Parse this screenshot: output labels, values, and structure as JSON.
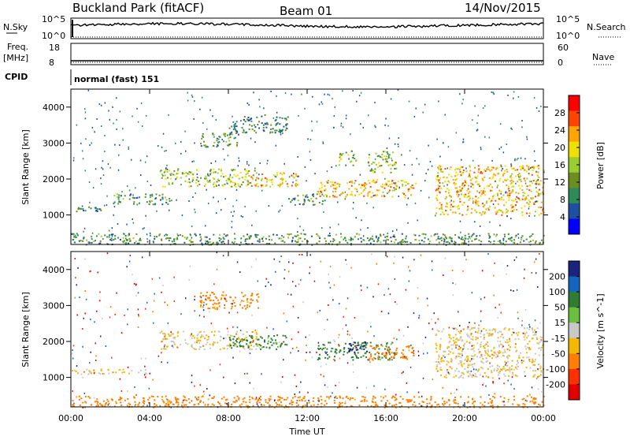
{
  "header": {
    "station": "Buckland Park (fitACF)",
    "beam": "Beam 01",
    "date": "14/Nov/2015"
  },
  "side_labels": {
    "nsky": "N.Sky",
    "nsearch": "N.Search",
    "freq_line1": "Freq.",
    "freq_line2": "[MHz]",
    "nave": "Nave",
    "cpid": "CPID"
  },
  "strip_ticks": {
    "noise_left": [
      "10^5",
      "10^0"
    ],
    "noise_right": [
      "10^5",
      "10^0"
    ],
    "freq_left": [
      "18",
      "8"
    ],
    "nave_right": [
      "60",
      "0"
    ]
  },
  "cpid_text": "normal (fast) 151",
  "axis_labels": {
    "ylabel": "Slant Range [km]",
    "xlabel": "Time UT"
  },
  "colors": {
    "power": [
      "#0000ff",
      "#1e4fa0",
      "#2e8b57",
      "#6b8e23",
      "#9acd32",
      "#f0e000",
      "#ffa500",
      "#ff4500",
      "#ff0000"
    ],
    "velocity": [
      "#1a237e",
      "#1565c0",
      "#2e7d32",
      "#6abf40",
      "#c8c8c8",
      "#f5b800",
      "#ff7f00",
      "#ff3000",
      "#e00000"
    ]
  },
  "chart_data": [
    {
      "type": "heatmap",
      "panel": "power",
      "ylabel": "Slant Range [km]",
      "x_range_hours": [
        0,
        24
      ],
      "ylim": [
        180,
        4500
      ],
      "yticks": [
        1000,
        2000,
        3000,
        4000
      ],
      "colorbar": {
        "label": "Power [dB]",
        "ticks": [
          4,
          8,
          12,
          16,
          20,
          24,
          28
        ],
        "range": [
          0,
          32
        ]
      },
      "echo_regions": [
        {
          "t": [
            0.0,
            1.5
          ],
          "r": [
            1100,
            1250
          ],
          "level": 8
        },
        {
          "t": [
            0.0,
            24.0
          ],
          "r": [
            180,
            500
          ],
          "level": 10
        },
        {
          "t": [
            2.0,
            5.0
          ],
          "r": [
            1300,
            1600
          ],
          "level": 10
        },
        {
          "t": [
            4.5,
            9.5
          ],
          "r": [
            1800,
            2300
          ],
          "level": 16
        },
        {
          "t": [
            6.5,
            8.5
          ],
          "r": [
            2900,
            3300
          ],
          "level": 10
        },
        {
          "t": [
            8.0,
            11.0
          ],
          "r": [
            3300,
            3800
          ],
          "level": 8
        },
        {
          "t": [
            9.0,
            11.5
          ],
          "r": [
            1800,
            2200
          ],
          "level": 22
        },
        {
          "t": [
            11.0,
            13.0
          ],
          "r": [
            1300,
            1600
          ],
          "level": 10
        },
        {
          "t": [
            12.5,
            17.5
          ],
          "r": [
            1500,
            2000
          ],
          "level": 22
        },
        {
          "t": [
            13.5,
            14.5
          ],
          "r": [
            2400,
            2800
          ],
          "level": 14
        },
        {
          "t": [
            15.0,
            16.5
          ],
          "r": [
            2200,
            2800
          ],
          "level": 14
        },
        {
          "t": [
            18.5,
            24.0
          ],
          "r": [
            1000,
            2400
          ],
          "level": 22
        }
      ]
    },
    {
      "type": "heatmap",
      "panel": "velocity",
      "ylabel": "Slant Range [km]",
      "x_range_hours": [
        0,
        24
      ],
      "ylim": [
        180,
        4500
      ],
      "yticks": [
        1000,
        2000,
        3000,
        4000
      ],
      "colorbar": {
        "label": "Velocity [m s^-1]",
        "ticks": [
          200,
          100,
          50,
          15,
          -15,
          -50,
          -100,
          -200
        ]
      },
      "echo_regions": [
        {
          "t": [
            0.0,
            4.0
          ],
          "r": [
            1100,
            1250
          ],
          "velocity": -15
        },
        {
          "t": [
            0.0,
            24.0
          ],
          "r": [
            180,
            500
          ],
          "velocity": -50
        },
        {
          "t": [
            4.5,
            9.5
          ],
          "r": [
            1800,
            2300
          ],
          "velocity": -15
        },
        {
          "t": [
            6.5,
            9.5
          ],
          "r": [
            2900,
            3400
          ],
          "velocity": -50
        },
        {
          "t": [
            8.0,
            11.0
          ],
          "r": [
            1800,
            2200
          ],
          "velocity": 50
        },
        {
          "t": [
            12.5,
            16.5
          ],
          "r": [
            1500,
            2000
          ],
          "velocity": 50
        },
        {
          "t": [
            14.0,
            15.0
          ],
          "r": [
            1700,
            2000
          ],
          "velocity": 200
        },
        {
          "t": [
            15.0,
            17.5
          ],
          "r": [
            1500,
            1900
          ],
          "velocity": -50
        },
        {
          "t": [
            18.5,
            24.0
          ],
          "r": [
            1000,
            2400
          ],
          "velocity": -15
        }
      ]
    }
  ],
  "x_axis": {
    "ticks": [
      "00:00",
      "04:00",
      "08:00",
      "12:00",
      "16:00",
      "20:00",
      "00:00"
    ],
    "label": "Time UT"
  }
}
